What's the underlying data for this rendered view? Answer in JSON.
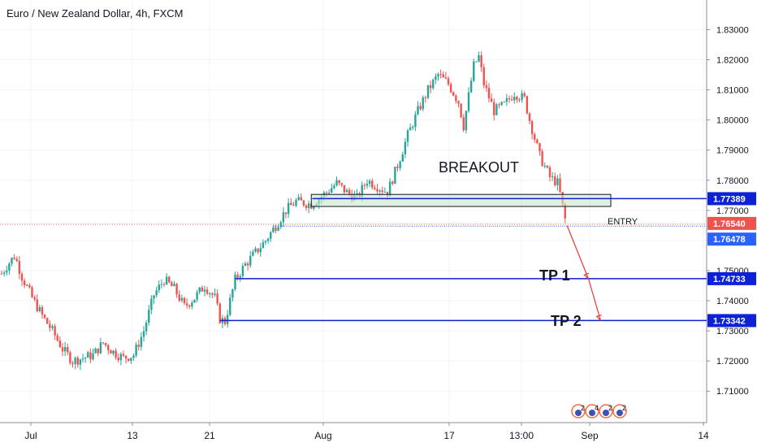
{
  "header": {
    "title": "Euro / New Zealand Dollar, 4h, FXCM"
  },
  "colors": {
    "up": "#26a69a",
    "down": "#ef5350",
    "level": "#0d21d6",
    "price_badge": "#ef5350",
    "level_badge": "#0d21d6",
    "entry_badge": "#2962ff",
    "zone_fill": "#c8e6c9",
    "grid": "#f0f3fa",
    "arrow": "#e53935"
  },
  "chart_data": {
    "type": "candlestick",
    "title": "Euro / New Zealand Dollar, 4h, FXCM",
    "y_range": [
      1.7044,
      1.8339
    ],
    "y_ticks": [
      "1.83000",
      "1.82000",
      "1.81000",
      "1.80000",
      "1.79000",
      "1.78000",
      "1.77000",
      "1.76000",
      "1.75000",
      "1.74000",
      "1.73000",
      "1.72000",
      "1.71000"
    ],
    "x_labels": [
      "Jul",
      "13",
      "21",
      "Aug",
      "17",
      "13:00",
      "Sep",
      "14"
    ],
    "grid": true,
    "price_path": [
      [
        0.0,
        1.749
      ],
      [
        0.6,
        1.752
      ],
      [
        1.3,
        1.755
      ],
      [
        2.0,
        1.748
      ],
      [
        3.0,
        1.741
      ],
      [
        4.0,
        1.735
      ],
      [
        5.0,
        1.73
      ],
      [
        6.0,
        1.724
      ],
      [
        7.0,
        1.72
      ],
      [
        8.0,
        1.721
      ],
      [
        9.0,
        1.722
      ],
      [
        10.0,
        1.726
      ],
      [
        11.0,
        1.723
      ],
      [
        12.0,
        1.721
      ],
      [
        13.0,
        1.722
      ],
      [
        14.0,
        1.73
      ],
      [
        15.0,
        1.742
      ],
      [
        16.0,
        1.747
      ],
      [
        17.0,
        1.744
      ],
      [
        18.0,
        1.738
      ],
      [
        19.0,
        1.741
      ],
      [
        20.0,
        1.745
      ],
      [
        21.0,
        1.741
      ],
      [
        21.5,
        1.734
      ],
      [
        22.0,
        1.733
      ],
      [
        23.0,
        1.747
      ],
      [
        24.0,
        1.752
      ],
      [
        25.0,
        1.756
      ],
      [
        26.0,
        1.76
      ],
      [
        27.0,
        1.765
      ],
      [
        28.0,
        1.77
      ],
      [
        29.0,
        1.773
      ],
      [
        30.5,
        1.772
      ],
      [
        32.0,
        1.776
      ],
      [
        33.0,
        1.779
      ],
      [
        34.0,
        1.776
      ],
      [
        35.0,
        1.774
      ],
      [
        36.0,
        1.78
      ],
      [
        37.0,
        1.778
      ],
      [
        38.0,
        1.776
      ],
      [
        39.0,
        1.785
      ],
      [
        40.0,
        1.795
      ],
      [
        41.0,
        1.803
      ],
      [
        42.0,
        1.81
      ],
      [
        43.0,
        1.815
      ],
      [
        44.0,
        1.812
      ],
      [
        45.0,
        1.806
      ],
      [
        45.5,
        1.798
      ],
      [
        46.0,
        1.808
      ],
      [
        46.5,
        1.818
      ],
      [
        47.0,
        1.821
      ],
      [
        47.5,
        1.812
      ],
      [
        48.5,
        1.803
      ],
      [
        49.5,
        1.805
      ],
      [
        50.5,
        1.809
      ],
      [
        51.5,
        1.807
      ],
      [
        52.0,
        1.8
      ],
      [
        53.0,
        1.788
      ],
      [
        54.0,
        1.781
      ],
      [
        54.8,
        1.779
      ],
      [
        55.2,
        1.772
      ],
      [
        55.6,
        1.7654
      ]
    ],
    "levels": [
      {
        "price": 1.77389,
        "label": "1.77389",
        "from_t": 30.6,
        "kind": "breakout"
      },
      {
        "price": 1.7654,
        "label": "1.76540",
        "kind": "current"
      },
      {
        "price": 1.76478,
        "label": "1.76478",
        "from_t": 26.8,
        "kind": "entry"
      },
      {
        "price": 1.74733,
        "label": "1.74733",
        "from_t": 23.0,
        "kind": "target"
      },
      {
        "price": 1.73342,
        "label": "1.73342",
        "from_t": 21.5,
        "kind": "target"
      }
    ],
    "zone": {
      "top": 1.7753,
      "bottom": 1.7713,
      "from_t": 30.5,
      "to_t": 60.0
    },
    "trade_arrow_path": [
      [
        55.7,
        1.7649
      ],
      [
        57.8,
        1.7473
      ],
      [
        59.0,
        1.7334
      ]
    ],
    "annotations": {
      "breakout": "BREAKOUT",
      "entry": "ENTRY",
      "tp1": "TP 1",
      "tp2": "TP 2"
    },
    "event_markers": [
      "2",
      "4",
      "2",
      "2"
    ]
  }
}
